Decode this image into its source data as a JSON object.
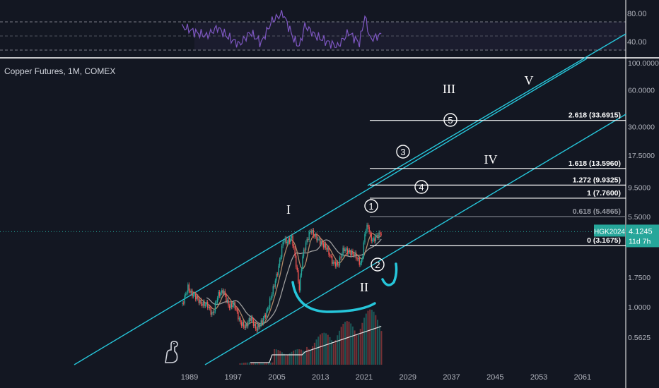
{
  "symbol_title": "Copper Futures, 1M, COMEX",
  "colors": {
    "background": "#131722",
    "channel": "#26c6da",
    "rsi_line": "#7e57c2",
    "price_up": "#26a69a",
    "price_down": "#ef5350",
    "badge": "#26a69a",
    "fib_line": "#ffffff",
    "axis_text": "#b2b5be"
  },
  "chart_data": [
    {
      "type": "line",
      "name": "RSI pane",
      "ylim": [
        20,
        100
      ],
      "ticks": [
        "80.00",
        "40.00"
      ],
      "levels": [
        70,
        50,
        30
      ],
      "grid": false
    },
    {
      "type": "line",
      "scale": "log",
      "xlabel": "",
      "ylabel": "",
      "xticks": [
        "1989",
        "1997",
        "2005",
        "2013",
        "2021",
        "2029",
        "2037",
        "2045",
        "2053",
        "2061"
      ],
      "yticks": [
        "100.0000",
        "60.0000",
        "30.0000",
        "17.5000",
        "9.5000",
        "5.5000",
        "1.7500",
        "1.0000",
        "0.5625"
      ],
      "price_points": {
        "x": [
          1987.5,
          1988.5,
          1989,
          1990,
          1991,
          1992,
          1993,
          1994,
          1995,
          1996,
          1997,
          1998,
          1999,
          2000,
          2001,
          2002,
          2003,
          2004,
          2005,
          2006,
          2006.5,
          2007,
          2007.5,
          2008,
          2008.9,
          2009.5,
          2010,
          2011,
          2011.5,
          2012,
          2013,
          2014,
          2015,
          2016,
          2017,
          2018,
          2019,
          2020.2,
          2020.5,
          2021,
          2021.5,
          2022,
          2022.5,
          2023,
          2023.5,
          2024
        ],
        "y": [
          1.05,
          1.45,
          1.3,
          1.2,
          1.05,
          1.05,
          0.85,
          1.25,
          1.35,
          1.0,
          1.05,
          0.75,
          0.68,
          0.82,
          0.65,
          0.75,
          0.92,
          1.35,
          2.0,
          3.6,
          3.4,
          3.5,
          3.7,
          2.8,
          1.4,
          2.6,
          3.2,
          4.3,
          3.9,
          3.7,
          3.3,
          3.0,
          2.3,
          2.2,
          3.0,
          2.8,
          2.7,
          2.2,
          2.7,
          4.3,
          4.6,
          3.6,
          3.5,
          3.8,
          3.9,
          4.1
        ]
      },
      "rsi_points": {
        "x": [
          1988,
          1990,
          1992,
          1994,
          1996,
          1998,
          2000,
          2002,
          2004,
          2006,
          2008,
          2009,
          2010,
          2012,
          2014,
          2016,
          2018,
          2020,
          2021,
          2022,
          2024
        ],
        "y": [
          62,
          55,
          50,
          62,
          48,
          38,
          55,
          40,
          72,
          82,
          45,
          35,
          65,
          50,
          42,
          35,
          55,
          40,
          78,
          45,
          52
        ]
      },
      "last_price": "4.1245",
      "badge_symbol": "HGK2024",
      "badge_countdown": "11d 7h",
      "fib_levels": [
        {
          "label": "2.618 (33.6915)",
          "value": 33.6915
        },
        {
          "label": "1.618 (13.5960)",
          "value": 13.596
        },
        {
          "label": "1.272 (9.9325)",
          "value": 9.9325
        },
        {
          "label": "1 (7.7600)",
          "value": 7.76
        },
        {
          "label": "0.618 (5.4865)",
          "value": 5.4865
        },
        {
          "label": "0 (3.1675)",
          "value": 3.1675
        }
      ],
      "wave_labels": {
        "major": [
          "I",
          "II",
          "III",
          "IV",
          "V"
        ],
        "minor": [
          "1",
          "2",
          "3",
          "4",
          "5"
        ]
      }
    }
  ]
}
